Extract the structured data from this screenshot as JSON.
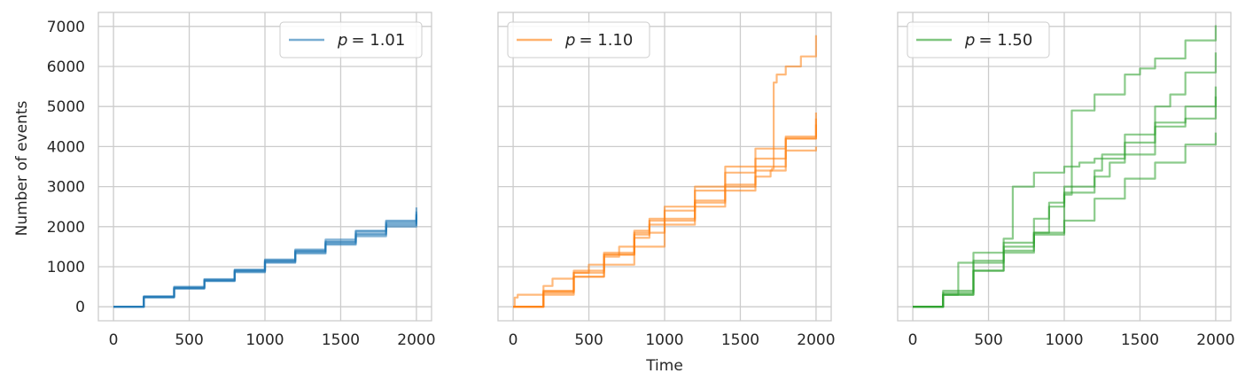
{
  "figure": {
    "xlabel": "Time",
    "ylabel": "Number of events"
  },
  "chart_data": [
    {
      "type": "line",
      "title": "",
      "xlim": [
        -100,
        2100
      ],
      "ylim": [
        -350,
        7350
      ],
      "xticks": [
        0,
        500,
        1000,
        1500,
        2000
      ],
      "yticks": [
        0,
        1000,
        2000,
        3000,
        4000,
        5000,
        6000,
        7000
      ],
      "grid": true,
      "legend": {
        "placement": "top-right",
        "symbol": "p",
        "value": "= 1.01"
      },
      "color": "#1f77b4",
      "series": [
        {
          "x": [
            0,
            200,
            400,
            600,
            800,
            1000,
            1200,
            1400,
            1600,
            1800,
            2000
          ],
          "y": [
            0,
            260,
            500,
            690,
            930,
            1180,
            1430,
            1680,
            1900,
            2150,
            2480
          ]
        },
        {
          "x": [
            0,
            200,
            400,
            600,
            800,
            1000,
            1200,
            1400,
            1600,
            1800,
            2000
          ],
          "y": [
            0,
            250,
            480,
            670,
            910,
            1160,
            1400,
            1630,
            1880,
            2120,
            2380
          ]
        },
        {
          "x": [
            0,
            200,
            400,
            600,
            800,
            1000,
            1200,
            1400,
            1600,
            1800,
            2000
          ],
          "y": [
            0,
            240,
            460,
            650,
            880,
            1120,
            1360,
            1580,
            1800,
            2040,
            2290
          ]
        },
        {
          "x": [
            0,
            200,
            400,
            600,
            800,
            1000,
            1200,
            1400,
            1600,
            1800,
            2000
          ],
          "y": [
            0,
            230,
            450,
            640,
            860,
            1100,
            1330,
            1550,
            1760,
            2000,
            2230
          ]
        },
        {
          "x": [
            0,
            200,
            400,
            600,
            800,
            1000,
            1200,
            1400,
            1600,
            1800,
            2000
          ],
          "y": [
            0,
            245,
            470,
            660,
            900,
            1140,
            1380,
            1610,
            1830,
            2080,
            2320
          ]
        }
      ]
    },
    {
      "type": "line",
      "title": "",
      "xlim": [
        -100,
        2100
      ],
      "ylim": [
        -350,
        7350
      ],
      "xticks": [
        0,
        500,
        1000,
        1500,
        2000
      ],
      "yticks": [
        0,
        1000,
        2000,
        3000,
        4000,
        5000,
        6000,
        7000
      ],
      "grid": true,
      "legend": {
        "placement": "top-left",
        "symbol": "p",
        "value": "= 1.10"
      },
      "color": "#ff7f0e",
      "series": [
        {
          "x": [
            0,
            10,
            30,
            200,
            260,
            400,
            600,
            800,
            900,
            1000,
            1200,
            1400,
            1600,
            1700,
            1710,
            1720,
            1740,
            1800,
            1900,
            2000
          ],
          "y": [
            0,
            230,
            300,
            520,
            700,
            900,
            1300,
            1720,
            2050,
            2150,
            2500,
            2900,
            3250,
            3400,
            3450,
            5600,
            5800,
            6000,
            6250,
            6780
          ]
        },
        {
          "x": [
            0,
            200,
            400,
            600,
            700,
            800,
            900,
            1000,
            1200,
            1400,
            1600,
            1800,
            2000
          ],
          "y": [
            0,
            350,
            750,
            1250,
            1500,
            1900,
            2150,
            2500,
            3000,
            3500,
            3950,
            4250,
            4550
          ]
        },
        {
          "x": [
            0,
            200,
            400,
            600,
            800,
            900,
            1000,
            1200,
            1400,
            1600,
            1800,
            2000
          ],
          "y": [
            0,
            400,
            850,
            1300,
            1800,
            2200,
            2400,
            2900,
            3350,
            3700,
            4200,
            4850
          ]
        },
        {
          "x": [
            0,
            200,
            400,
            600,
            800,
            1000,
            1200,
            1400,
            1600,
            1800,
            2000
          ],
          "y": [
            0,
            380,
            750,
            1050,
            1500,
            2050,
            2600,
            3050,
            3500,
            3900,
            4000
          ]
        },
        {
          "x": [
            0,
            200,
            400,
            500,
            600,
            800,
            1000,
            1200,
            1400,
            1600,
            1800,
            2000
          ],
          "y": [
            0,
            300,
            850,
            1050,
            1350,
            1850,
            2200,
            2650,
            3000,
            3400,
            4200,
            4700
          ]
        }
      ]
    },
    {
      "type": "line",
      "title": "",
      "xlim": [
        -100,
        2100
      ],
      "ylim": [
        -350,
        7350
      ],
      "xticks": [
        0,
        500,
        1000,
        1500,
        2000
      ],
      "yticks": [
        0,
        1000,
        2000,
        3000,
        4000,
        5000,
        6000,
        7000
      ],
      "grid": true,
      "legend": {
        "placement": "top-left",
        "symbol": "p",
        "value": "= 1.50"
      },
      "color": "#2ca02c",
      "series": [
        {
          "x": [
            0,
            200,
            400,
            600,
            800,
            900,
            1000,
            1050,
            1200,
            1400,
            1500,
            1600,
            1800,
            2000
          ],
          "y": [
            0,
            300,
            900,
            1600,
            2200,
            2600,
            2800,
            4900,
            5300,
            5800,
            5950,
            6200,
            6650,
            7030
          ]
        },
        {
          "x": [
            0,
            200,
            300,
            400,
            600,
            660,
            800,
            1000,
            1100,
            1200,
            1400,
            1600,
            1700,
            1800,
            2000
          ],
          "y": [
            0,
            300,
            1100,
            1350,
            1700,
            3000,
            3350,
            3500,
            3600,
            3700,
            4100,
            5000,
            5300,
            5850,
            6350
          ]
        },
        {
          "x": [
            0,
            200,
            400,
            600,
            800,
            900,
            1000,
            1200,
            1250,
            1400,
            1600,
            1800,
            2000
          ],
          "y": [
            0,
            350,
            1150,
            1500,
            1850,
            2500,
            3000,
            3400,
            3800,
            4300,
            4600,
            5000,
            5500
          ]
        },
        {
          "x": [
            0,
            200,
            400,
            600,
            800,
            1000,
            1200,
            1300,
            1400,
            1600,
            1800,
            2000
          ],
          "y": [
            0,
            400,
            1100,
            1350,
            1850,
            2850,
            3250,
            3600,
            3800,
            4500,
            4700,
            5250
          ]
        },
        {
          "x": [
            0,
            200,
            400,
            600,
            800,
            1000,
            1200,
            1400,
            1600,
            1800,
            2000
          ],
          "y": [
            0,
            300,
            900,
            1400,
            1800,
            2150,
            2700,
            3200,
            3600,
            4050,
            4350
          ]
        }
      ]
    }
  ]
}
